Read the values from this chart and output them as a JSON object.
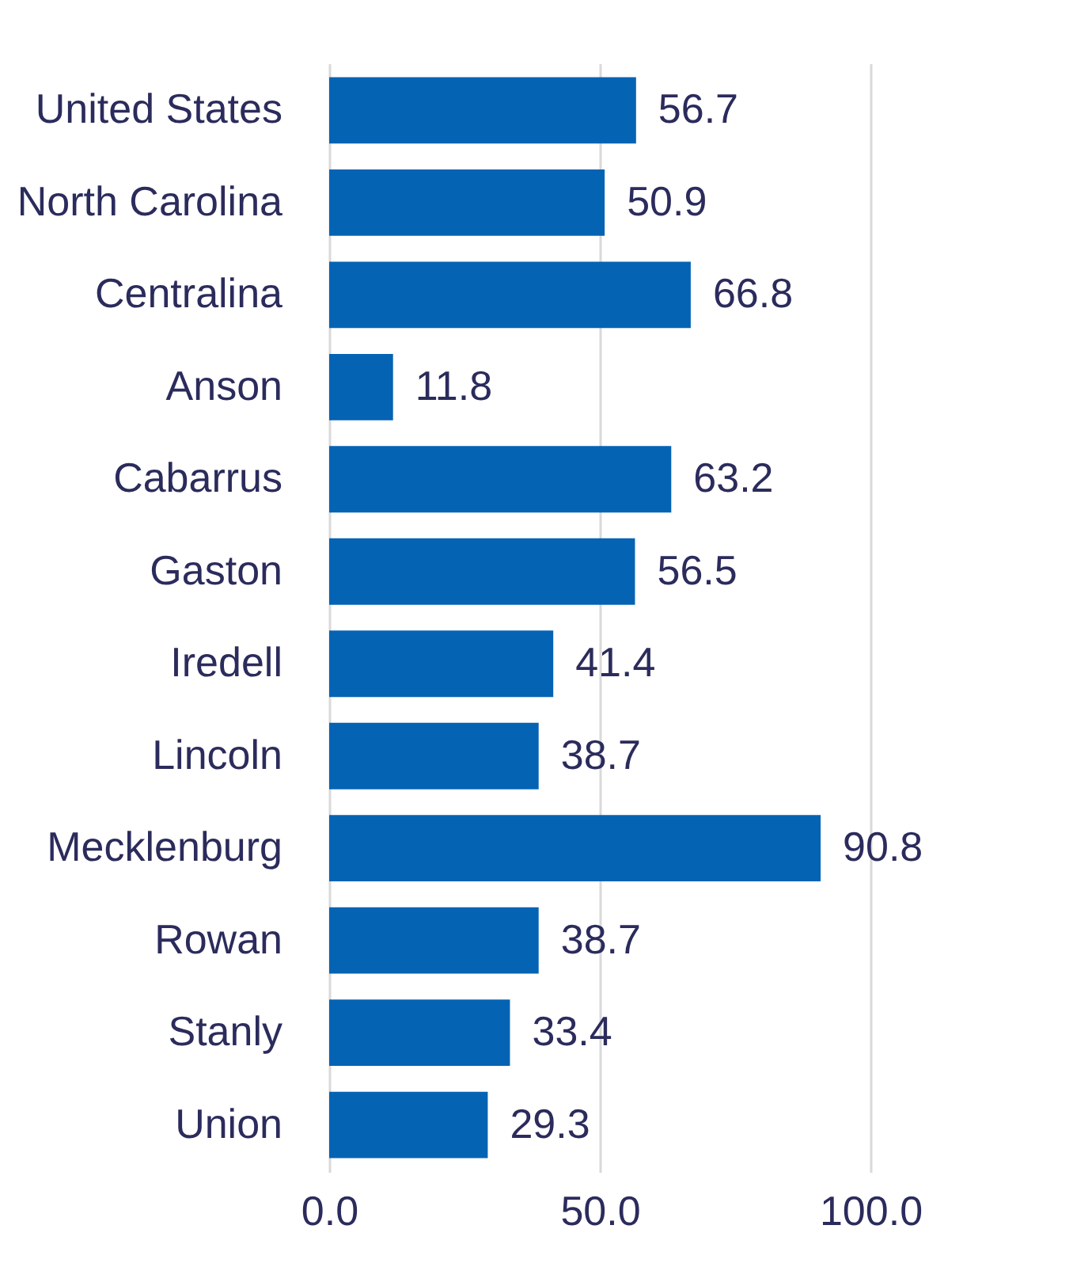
{
  "chart_data": {
    "type": "bar",
    "orientation": "horizontal",
    "categories": [
      "United States",
      "North Carolina",
      "Centralina",
      "Anson",
      "Cabarrus",
      "Gaston",
      "Iredell",
      "Lincoln",
      "Mecklenburg",
      "Rowan",
      "Stanly",
      "Union"
    ],
    "values": [
      56.7,
      50.9,
      66.8,
      11.8,
      63.2,
      56.5,
      41.4,
      38.7,
      90.8,
      38.7,
      33.4,
      29.3
    ],
    "color": "#0563b4",
    "xlim": [
      0,
      100
    ],
    "xticks": [
      {
        "value": 0,
        "label": "0.0"
      },
      {
        "value": 50,
        "label": "50.0"
      },
      {
        "value": 100,
        "label": "100.0"
      }
    ],
    "grid": "x",
    "data_labels": true
  }
}
